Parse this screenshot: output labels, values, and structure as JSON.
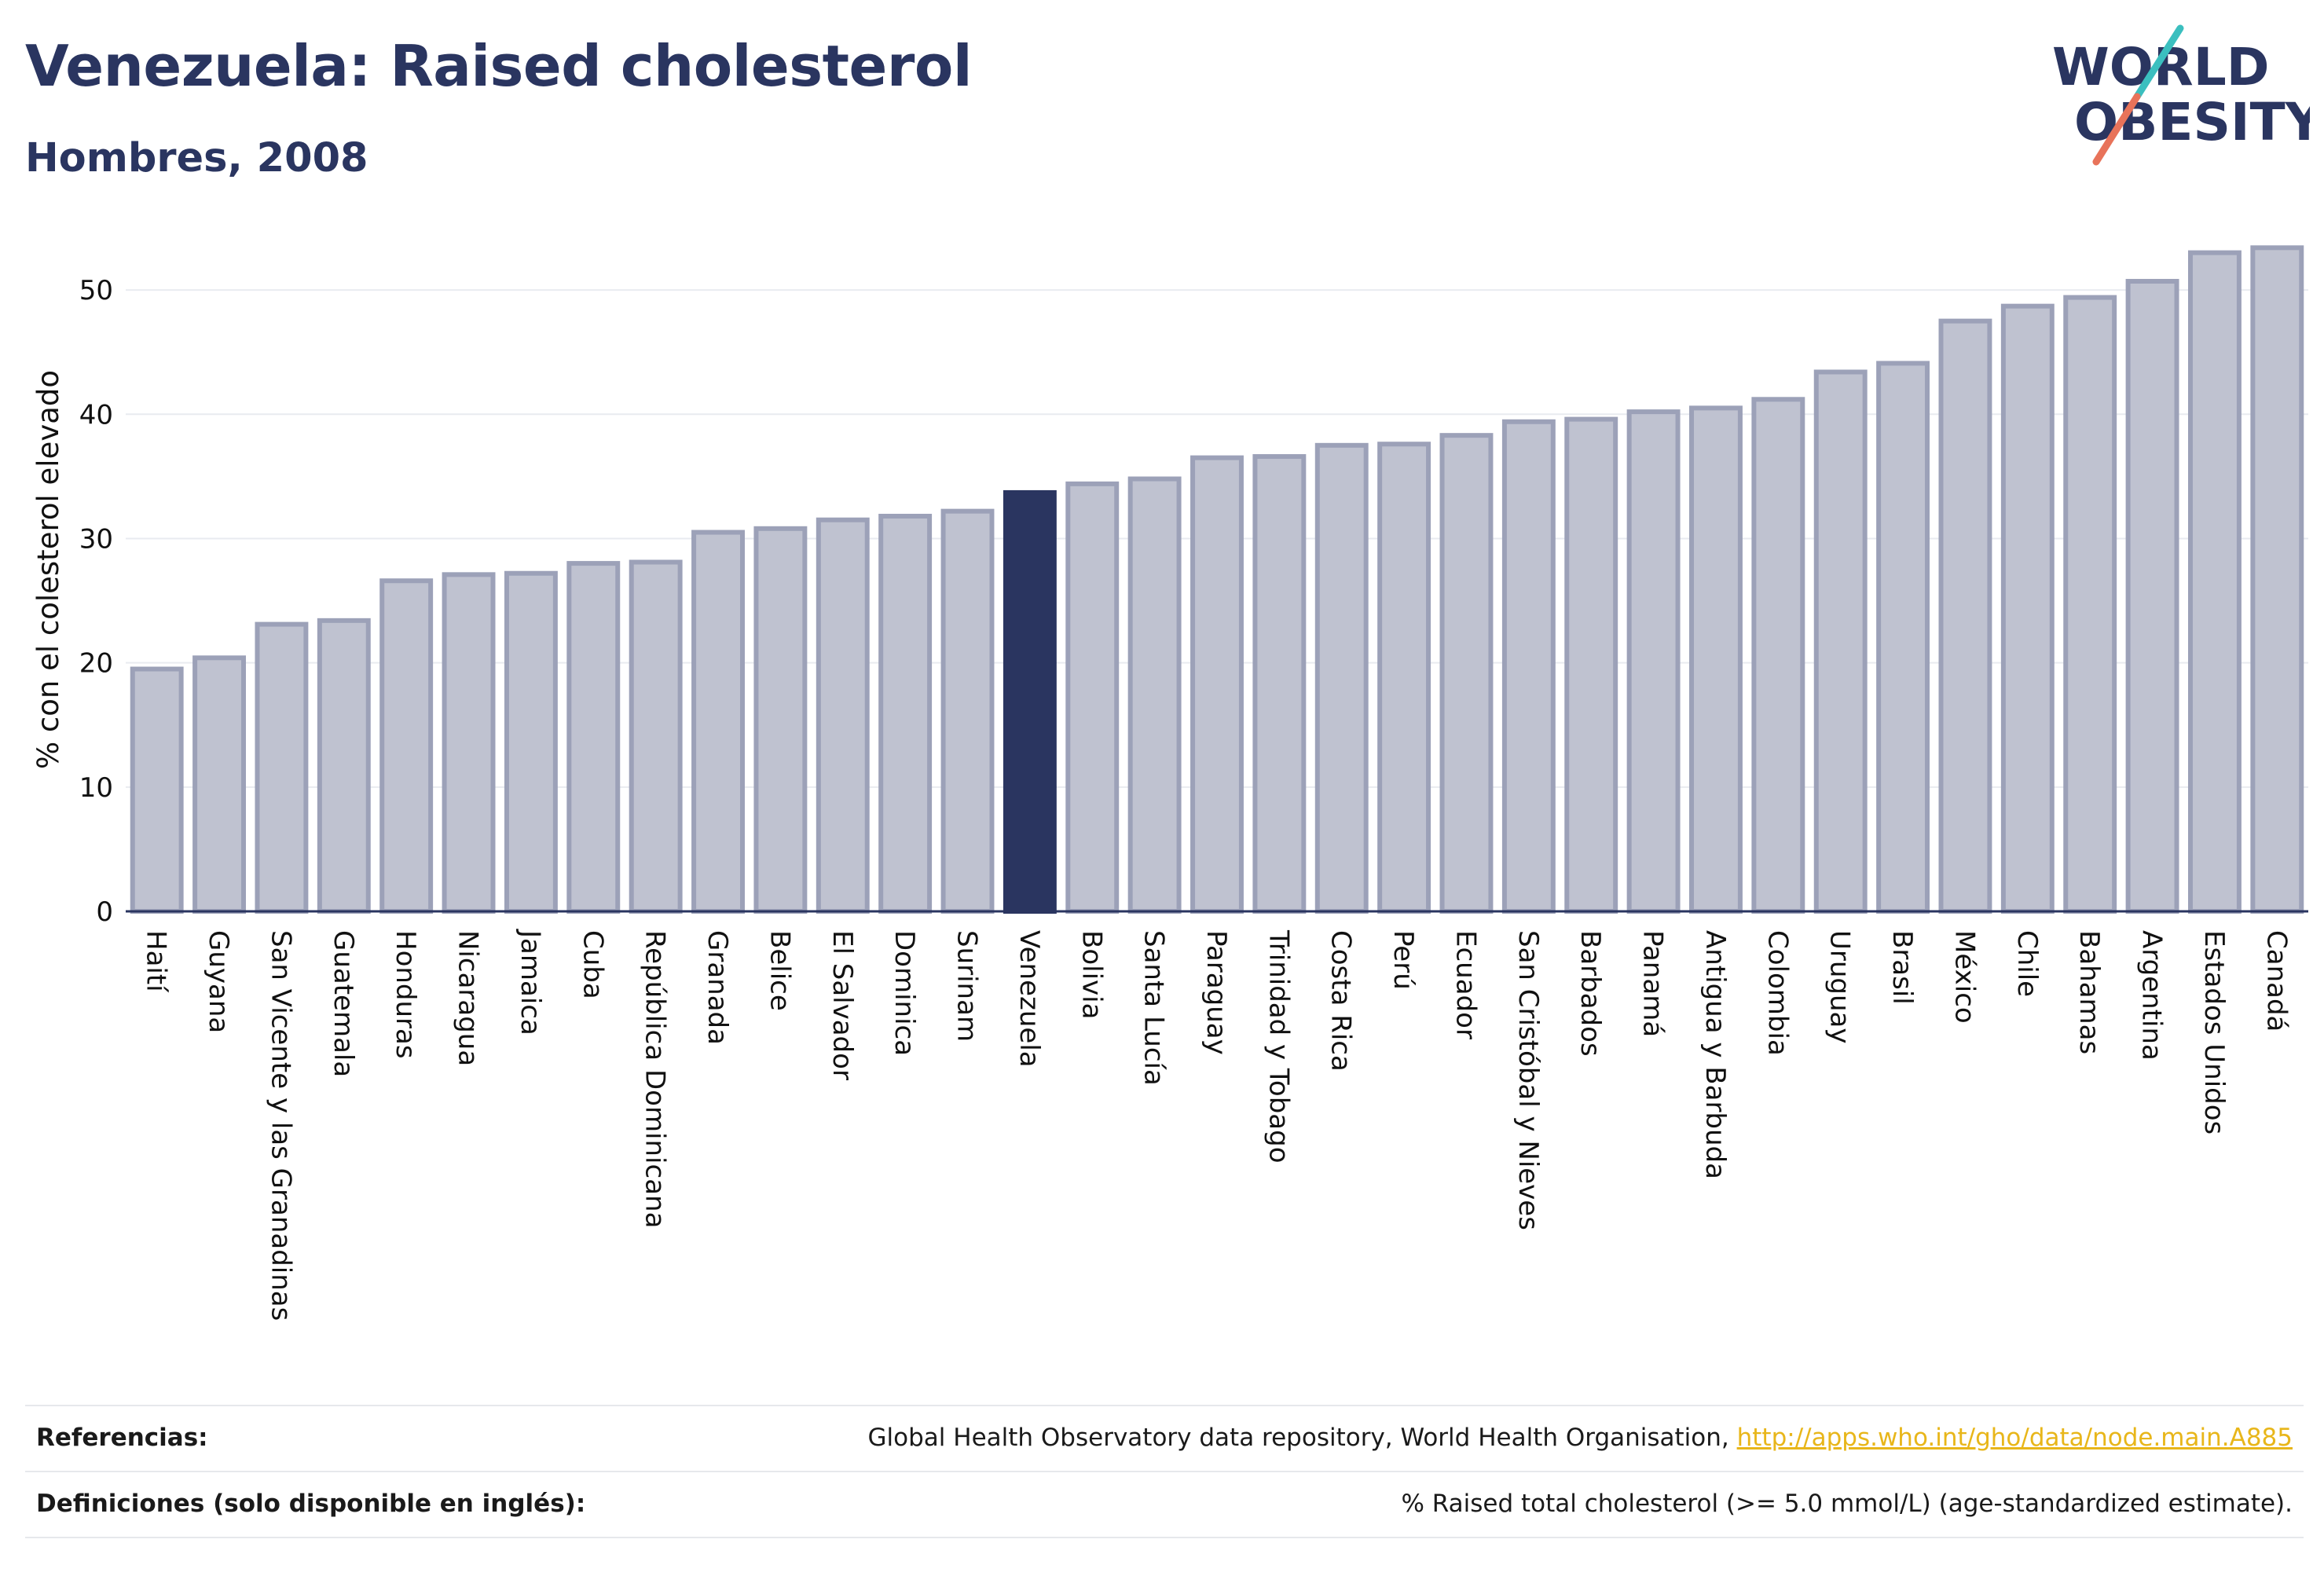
{
  "header": {
    "title": "Venezuela: Raised cholesterol",
    "subtitle": "Hombres, 2008"
  },
  "logo": {
    "line1": "WORLD",
    "line2": "OBESITY",
    "colors": {
      "text": "#2a3560",
      "slash_teal": "#3bbfbf",
      "slash_coral": "#e8735a"
    }
  },
  "colors": {
    "bar_fill": "#bfc2d0",
    "bar_stroke": "#9ca1b8",
    "highlight": "#2a3560",
    "grid": "#e9ebf0",
    "axis_text": "#111111"
  },
  "chart_data": {
    "type": "bar",
    "ylabel": "% con el colesterol elevado",
    "ylim": [
      0,
      55
    ],
    "yticks": [
      0,
      10,
      20,
      30,
      40,
      50
    ],
    "grid": true,
    "highlight": "Venezuela",
    "categories": [
      "Haití",
      "Guyana",
      "San Vicente y las Granadinas",
      "Guatemala",
      "Honduras",
      "Nicaragua",
      "Jamaica",
      "Cuba",
      "República Dominicana",
      "Granada",
      "Belice",
      "El Salvador",
      "Dominica",
      "Surinam",
      "Venezuela",
      "Bolivia",
      "Santa Lucía",
      "Paraguay",
      "Trinidad y Tobago",
      "Costa Rica",
      "Perú",
      "Ecuador",
      "San Cristóbal y Nieves",
      "Barbados",
      "Panamá",
      "Antigua y Barbuda",
      "Colombia",
      "Uruguay",
      "Brasil",
      "México",
      "Chile",
      "Bahamas",
      "Argentina",
      "Estados Unidos",
      "Canadá"
    ],
    "values": [
      19.5,
      20.4,
      23.1,
      23.4,
      26.6,
      27.1,
      27.2,
      28.0,
      28.1,
      30.5,
      30.8,
      31.5,
      31.8,
      32.2,
      33.7,
      34.4,
      34.8,
      36.5,
      36.6,
      37.5,
      37.6,
      38.3,
      39.4,
      39.6,
      40.2,
      40.5,
      41.2,
      43.4,
      44.1,
      47.5,
      48.7,
      49.4,
      50.7,
      53.0,
      53.4
    ]
  },
  "references": [
    {
      "label": "Referencias:",
      "text": "Global Health Observatory data repository, World Health Organisation, ",
      "link": "http://apps.who.int/gho/data/node.main.A885"
    },
    {
      "label": "Definiciones (solo disponible en inglés):",
      "text": "% Raised total cholesterol (>= 5.0 mmol/L) (age-standardized estimate).",
      "link": ""
    }
  ]
}
